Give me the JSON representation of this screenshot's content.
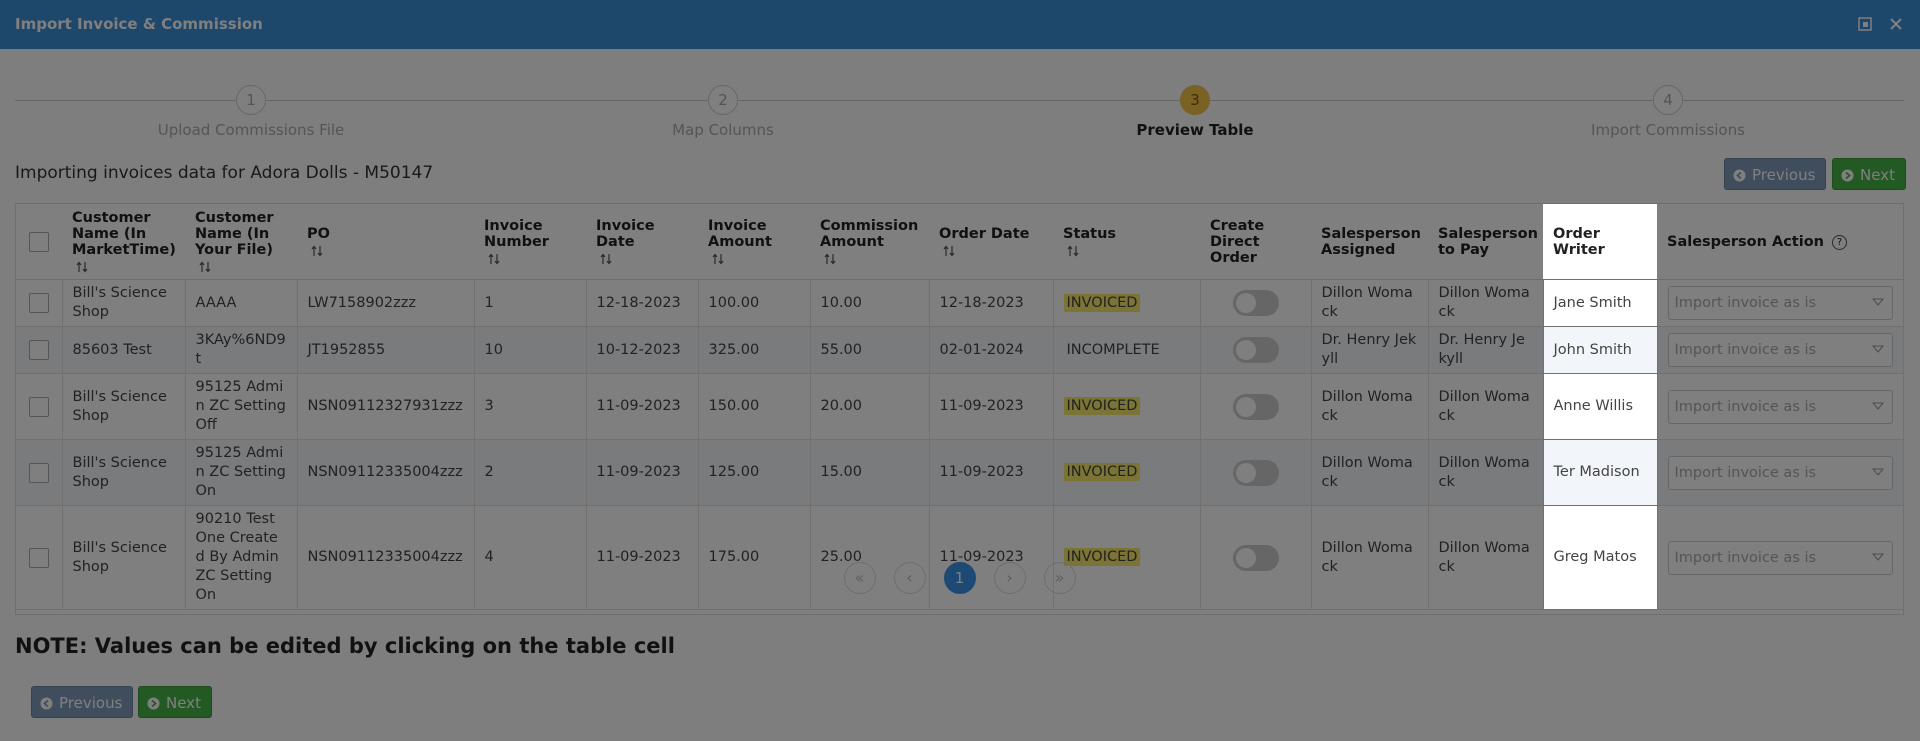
{
  "dialog": {
    "title": "Import Invoice & Commission"
  },
  "steps": [
    {
      "number": "1",
      "label": "Upload Commissions File",
      "active": false
    },
    {
      "number": "2",
      "label": "Map Columns",
      "active": false
    },
    {
      "number": "3",
      "label": "Preview Table",
      "active": true
    },
    {
      "number": "4",
      "label": "Import Commissions",
      "active": false
    }
  ],
  "subtitle": "Importing invoices data for Adora Dolls - M50147",
  "buttons": {
    "previous": "Previous",
    "next": "Next"
  },
  "table": {
    "columns": [
      {
        "label": "Customer Name (In MarketTime)",
        "sortable": true
      },
      {
        "label": "Customer Name (In Your File)",
        "sortable": true
      },
      {
        "label": "PO",
        "sortable": true
      },
      {
        "label": "Invoice Number",
        "sortable": true
      },
      {
        "label": "Invoice Date",
        "sortable": true
      },
      {
        "label": "Invoice Amount",
        "sortable": true
      },
      {
        "label": "Commission Amount",
        "sortable": true
      },
      {
        "label": "Order Date",
        "sortable": true
      },
      {
        "label": "Status",
        "sortable": true
      },
      {
        "label": "Create Direct Order",
        "sortable": false
      },
      {
        "label": "Salesperson Assigned",
        "sortable": false
      },
      {
        "label": "Salesperson to Pay",
        "sortable": false
      },
      {
        "label": "Order Writer",
        "sortable": false,
        "highlighted": true
      },
      {
        "label": "Salesperson Action",
        "sortable": false,
        "help": true
      }
    ],
    "help_icon": "?",
    "rows": [
      [
        "Bill's Science Shop",
        "AAAA",
        "LW7158902zzz",
        "1",
        "12-18-2023",
        "100.00",
        "10.00",
        "12-18-2023",
        "INVOICED",
        "Dillon Womack",
        "Dillon Womack",
        "Jane Smith"
      ],
      [
        "85603 Test",
        "3KAy%6ND9t",
        "JT1952855",
        "10",
        "10-12-2023",
        "325.00",
        "55.00",
        "02-01-2024",
        "INCOMPLETE",
        "Dr. Henry Jekyll",
        "Dr. Henry Jekyll",
        "John Smith"
      ],
      [
        "Bill's Science Shop",
        "95125 Admin ZC Setting Off",
        "NSN09112327931zzz",
        "3",
        "11-09-2023",
        "150.00",
        "20.00",
        "11-09-2023",
        "INVOICED",
        "Dillon Womack",
        "Dillon Womack",
        "Anne Willis"
      ],
      [
        "Bill's Science Shop",
        "95125 Admin ZC Setting On",
        "NSN09112335004zzz",
        "2",
        "11-09-2023",
        "125.00",
        "15.00",
        "11-09-2023",
        "INVOICED",
        "Dillon Womack",
        "Dillon Womack",
        "Ter Madison"
      ],
      [
        "Bill's Science Shop",
        "90210 Test One Created By Admin ZC Setting On",
        "NSN09112335004zzz",
        "4",
        "11-09-2023",
        "175.00",
        "25.00",
        "11-09-2023",
        "INVOICED",
        "Dillon Womack",
        "Dillon Womack",
        "Greg Matos"
      ]
    ],
    "status_badge": [
      true,
      false,
      true,
      true,
      true
    ],
    "action_placeholder": "Import invoice as is"
  },
  "pagination": {
    "first": "«",
    "prev": "‹",
    "current": "1",
    "next": "›",
    "last": "»"
  },
  "note": "NOTE: Values can be edited by clicking on the table cell"
}
